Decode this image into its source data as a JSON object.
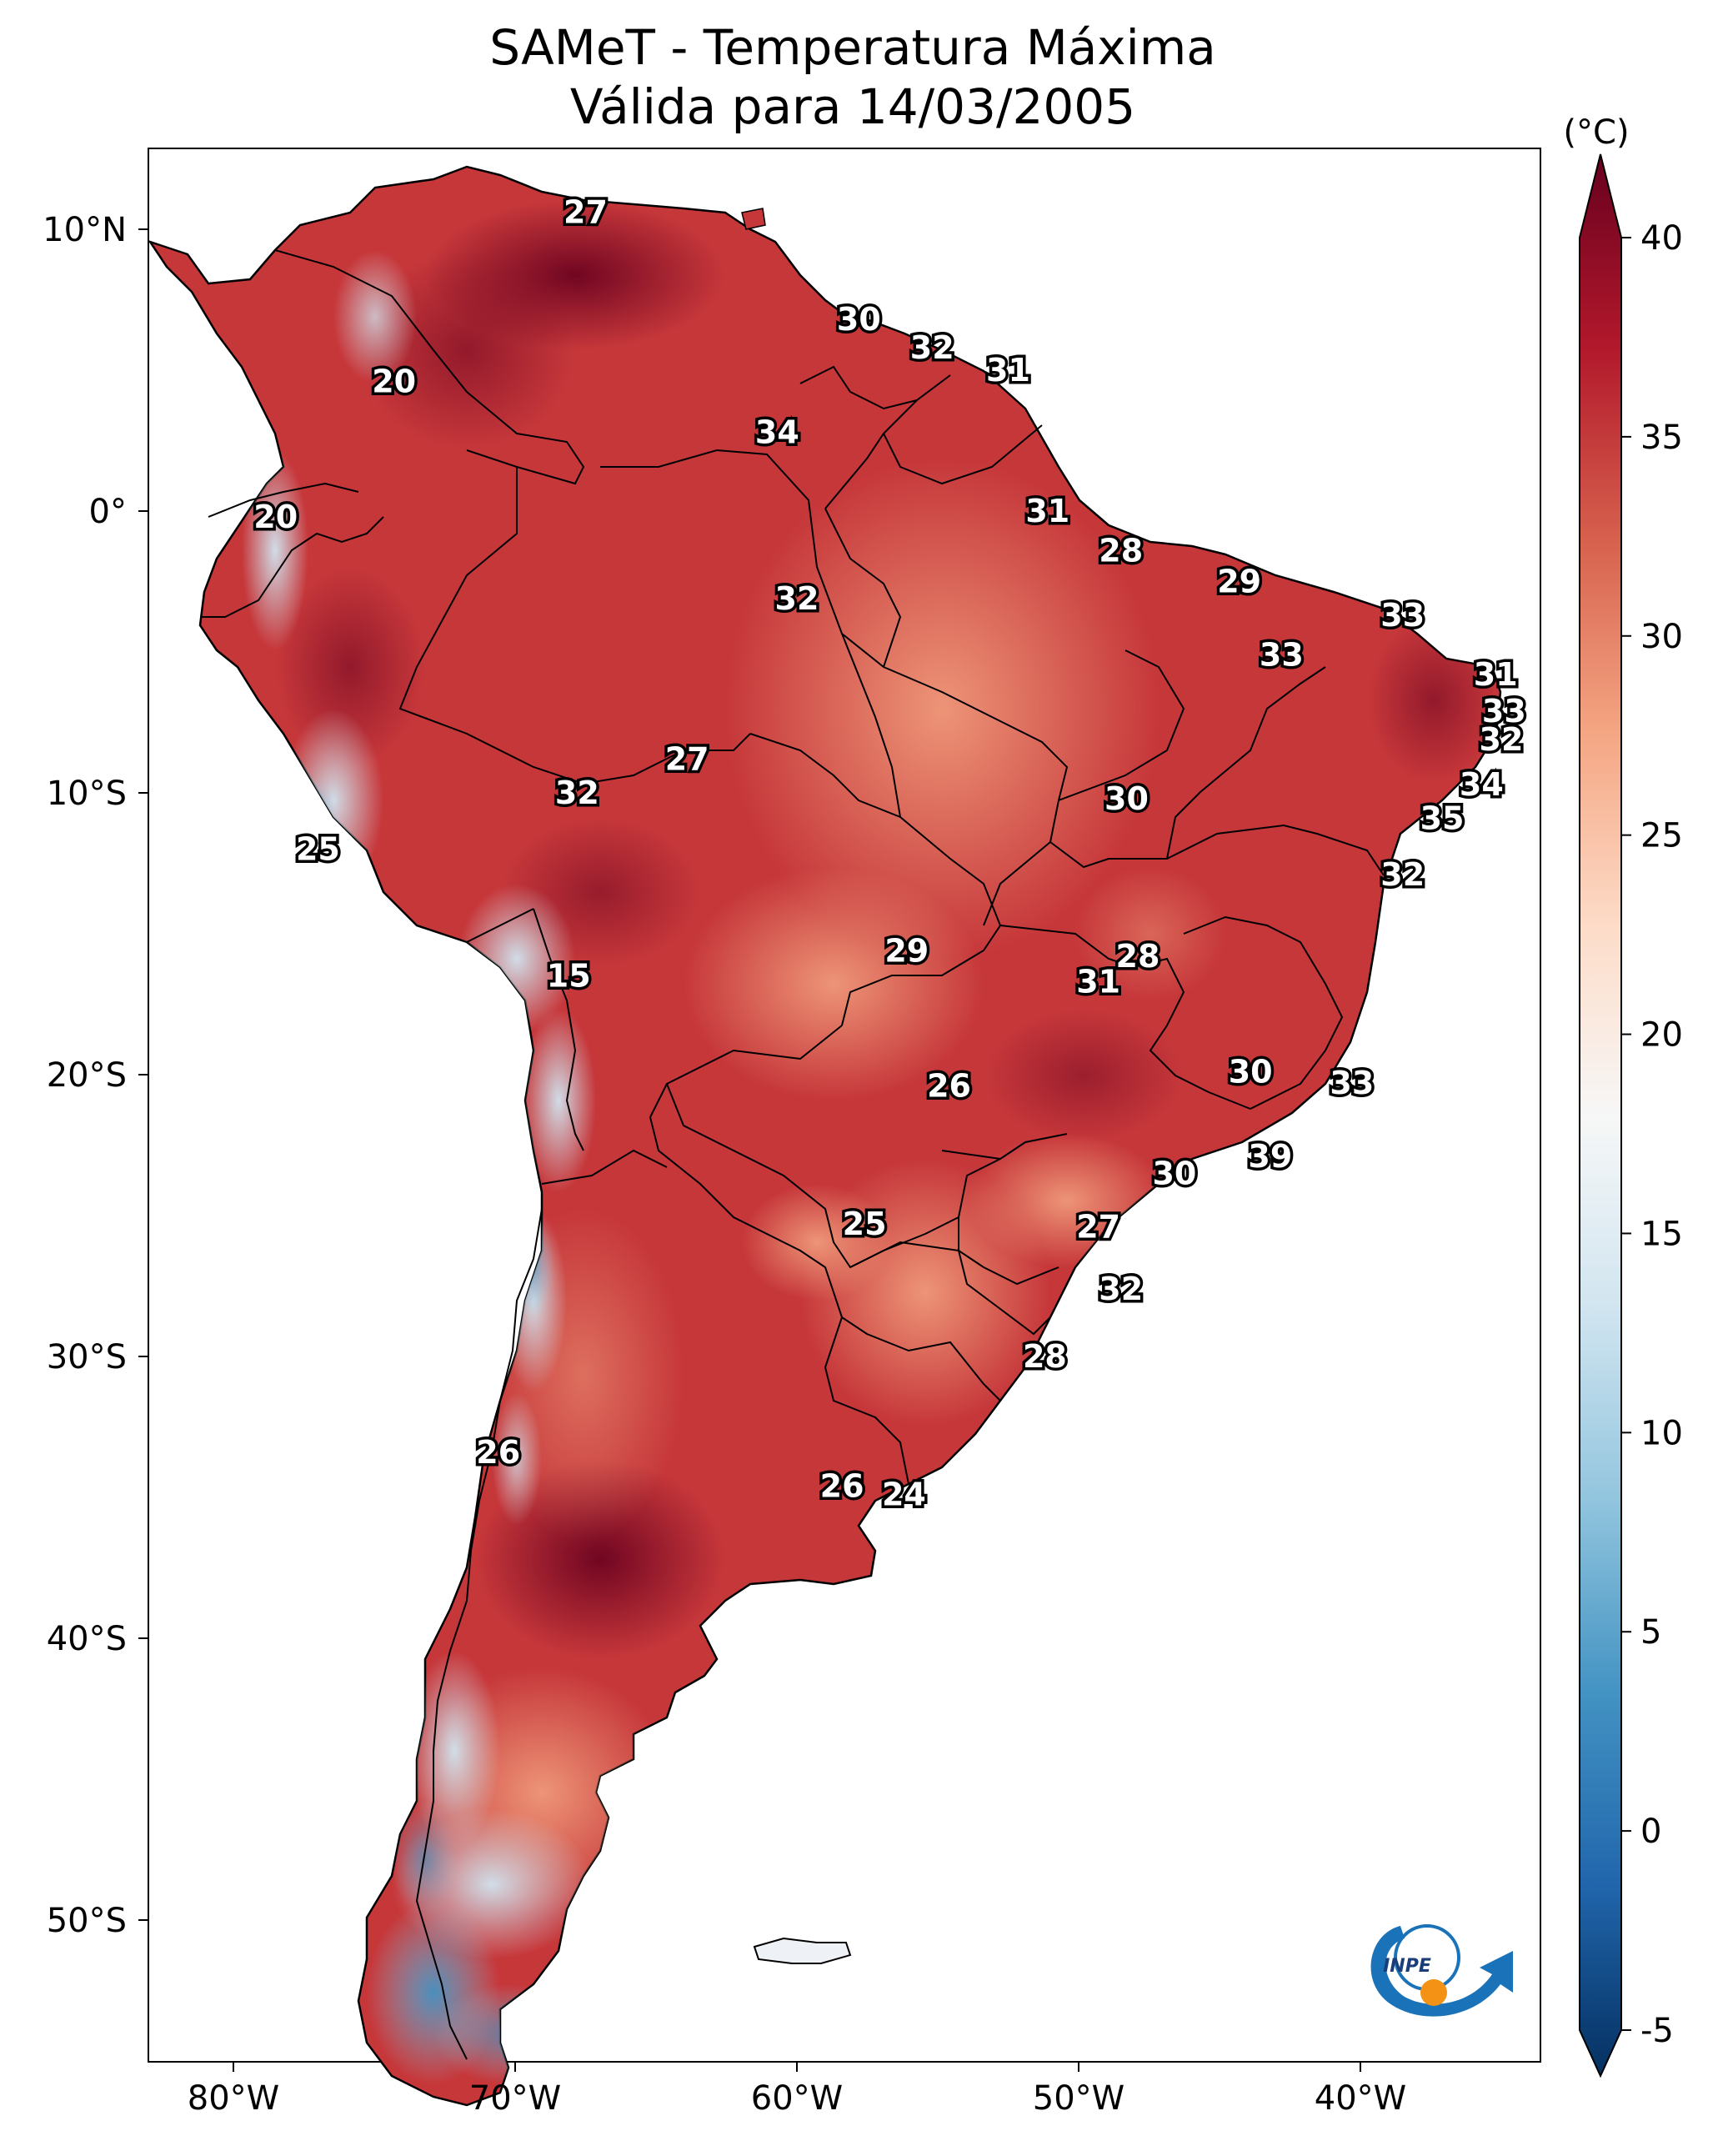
{
  "title": {
    "line1": "SAMeT - Temperatura Máxima",
    "line2": "Válida para 14/03/2005"
  },
  "colorbar": {
    "unit": "(°C)",
    "min": -5,
    "max": 40,
    "ticks": [
      "40",
      "35",
      "30",
      "25",
      "20",
      "15",
      "10",
      "5",
      "0",
      "-5"
    ],
    "colors": [
      "#053061",
      "#2166ac",
      "#4393c3",
      "#92c5de",
      "#d1e5f0",
      "#f7f7f7",
      "#fddbc7",
      "#f4a582",
      "#d6604d",
      "#b2182b",
      "#67001f"
    ]
  },
  "axes": {
    "lon_labels": [
      "80°W",
      "70°W",
      "60°W",
      "50°W",
      "40°W"
    ],
    "lat_labels": [
      "10°N",
      "0°",
      "10°S",
      "20°S",
      "30°S",
      "40°S",
      "50°S"
    ]
  },
  "stations": [
    {
      "value": "27",
      "lon": -67.5,
      "lat": 10.6
    },
    {
      "value": "30",
      "lon": -57.8,
      "lat": 6.8
    },
    {
      "value": "32",
      "lon": -55.2,
      "lat": 5.8
    },
    {
      "value": "31",
      "lon": -52.5,
      "lat": 5.0
    },
    {
      "value": "20",
      "lon": -74.3,
      "lat": 4.6
    },
    {
      "value": "34",
      "lon": -60.7,
      "lat": 2.8
    },
    {
      "value": "20",
      "lon": -78.5,
      "lat": -0.2
    },
    {
      "value": "31",
      "lon": -51.1,
      "lat": 0.0
    },
    {
      "value": "28",
      "lon": -48.5,
      "lat": -1.4
    },
    {
      "value": "32",
      "lon": -60.0,
      "lat": -3.1
    },
    {
      "value": "29",
      "lon": -44.3,
      "lat": -2.5
    },
    {
      "value": "33",
      "lon": -38.5,
      "lat": -3.7
    },
    {
      "value": "33",
      "lon": -42.8,
      "lat": -5.1
    },
    {
      "value": "31",
      "lon": -35.2,
      "lat": -5.8
    },
    {
      "value": "33",
      "lon": -34.9,
      "lat": -7.1
    },
    {
      "value": "32",
      "lon": -35.0,
      "lat": -8.1
    },
    {
      "value": "27",
      "lon": -63.9,
      "lat": -8.8
    },
    {
      "value": "32",
      "lon": -67.8,
      "lat": -10.0
    },
    {
      "value": "30",
      "lon": -48.3,
      "lat": -10.2
    },
    {
      "value": "34",
      "lon": -35.7,
      "lat": -9.7
    },
    {
      "value": "35",
      "lon": -37.1,
      "lat": -10.9
    },
    {
      "value": "25",
      "lon": -77.0,
      "lat": -12.0
    },
    {
      "value": "32",
      "lon": -38.5,
      "lat": -12.9
    },
    {
      "value": "15",
      "lon": -68.1,
      "lat": -16.5
    },
    {
      "value": "29",
      "lon": -56.1,
      "lat": -15.6
    },
    {
      "value": "28",
      "lon": -47.9,
      "lat": -15.8
    },
    {
      "value": "31",
      "lon": -49.3,
      "lat": -16.7
    },
    {
      "value": "30",
      "lon": -43.9,
      "lat": -19.9
    },
    {
      "value": "33",
      "lon": -40.3,
      "lat": -20.3
    },
    {
      "value": "26",
      "lon": -54.6,
      "lat": -20.4
    },
    {
      "value": "39",
      "lon": -43.2,
      "lat": -22.9
    },
    {
      "value": "30",
      "lon": -46.6,
      "lat": -23.5
    },
    {
      "value": "25",
      "lon": -57.6,
      "lat": -25.3
    },
    {
      "value": "27",
      "lon": -49.3,
      "lat": -25.4
    },
    {
      "value": "32",
      "lon": -48.5,
      "lat": -27.6
    },
    {
      "value": "28",
      "lon": -51.2,
      "lat": -30.0
    },
    {
      "value": "26",
      "lon": -70.6,
      "lat": -33.4
    },
    {
      "value": "26",
      "lon": -58.4,
      "lat": -34.6
    },
    {
      "value": "24",
      "lon": -56.2,
      "lat": -34.9
    }
  ],
  "logo": {
    "text": "INPE"
  }
}
